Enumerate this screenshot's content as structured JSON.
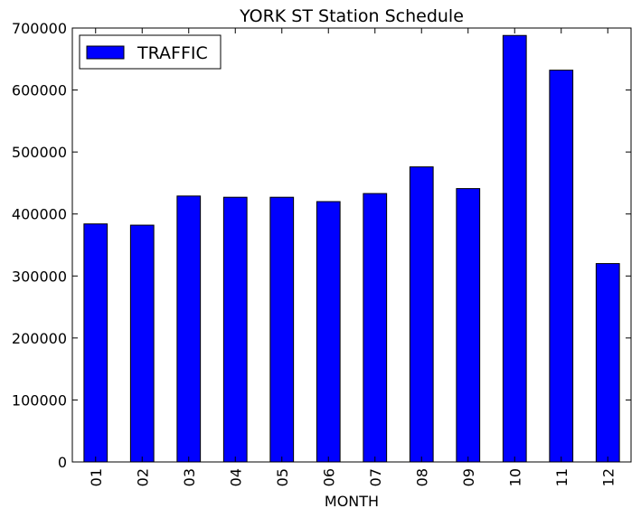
{
  "chart_data": {
    "type": "bar",
    "title": "YORK ST Station Schedule",
    "xlabel": "MONTH",
    "ylabel": "",
    "categories": [
      "01",
      "02",
      "03",
      "04",
      "05",
      "06",
      "07",
      "08",
      "09",
      "10",
      "11",
      "12"
    ],
    "series": [
      {
        "name": "TRAFFIC",
        "values": [
          384000,
          382000,
          429000,
          427000,
          427000,
          420000,
          433000,
          476000,
          441000,
          688000,
          632000,
          320000
        ],
        "color": "#0000ff"
      }
    ],
    "ylim": [
      0,
      700000
    ],
    "yticks": [
      0,
      100000,
      200000,
      300000,
      400000,
      500000,
      600000,
      700000
    ],
    "yticklabels": [
      "0",
      "100000",
      "200000",
      "300000",
      "400000",
      "500000",
      "600000",
      "700000"
    ],
    "legend_position": "upper-left",
    "grid": false
  }
}
